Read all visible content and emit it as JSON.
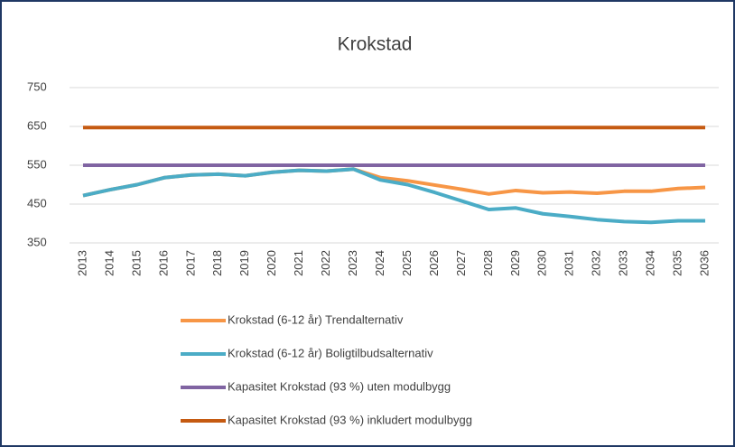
{
  "chart_data": {
    "type": "line",
    "title": "Krokstad",
    "categories": [
      "2013",
      "2014",
      "2015",
      "2016",
      "2017",
      "2018",
      "2019",
      "2020",
      "2021",
      "2022",
      "2023",
      "2024",
      "2025",
      "2026",
      "2027",
      "2028",
      "2029",
      "2030",
      "2031",
      "2032",
      "2033",
      "2034",
      "2035",
      "2036"
    ],
    "series": [
      {
        "name": "Krokstad (6-12 år) Trendalternativ",
        "color": "#f79646",
        "values": [
          472,
          487,
          500,
          518,
          525,
          527,
          523,
          532,
          537,
          535,
          540,
          518,
          510,
          499,
          488,
          476,
          485,
          479,
          481,
          478,
          483,
          483,
          490,
          493
        ]
      },
      {
        "name": "Krokstad (6-12 år) Boligtilbudsalternativ",
        "color": "#4bacc6",
        "values": [
          472,
          487,
          500,
          518,
          525,
          527,
          523,
          532,
          537,
          535,
          540,
          512,
          500,
          480,
          458,
          436,
          440,
          425,
          418,
          410,
          405,
          403,
          407,
          407
        ]
      },
      {
        "name": "Kapasitet Krokstad (93 %) uten modulbygg",
        "color": "#8064a2",
        "values": [
          550,
          550,
          550,
          550,
          550,
          550,
          550,
          550,
          550,
          550,
          550,
          550,
          550,
          550,
          550,
          550,
          550,
          550,
          550,
          550,
          550,
          550,
          550,
          550
        ]
      },
      {
        "name": "Kapasitet Krokstad (93 %) inkludert modulbygg",
        "color": "#c55a11",
        "values": [
          647,
          647,
          647,
          647,
          647,
          647,
          647,
          647,
          647,
          647,
          647,
          647,
          647,
          647,
          647,
          647,
          647,
          647,
          647,
          647,
          647,
          647,
          647,
          647
        ]
      }
    ],
    "ylim": [
      350,
      750
    ],
    "yticks": [
      350,
      450,
      550,
      650,
      750
    ],
    "grid": true
  }
}
